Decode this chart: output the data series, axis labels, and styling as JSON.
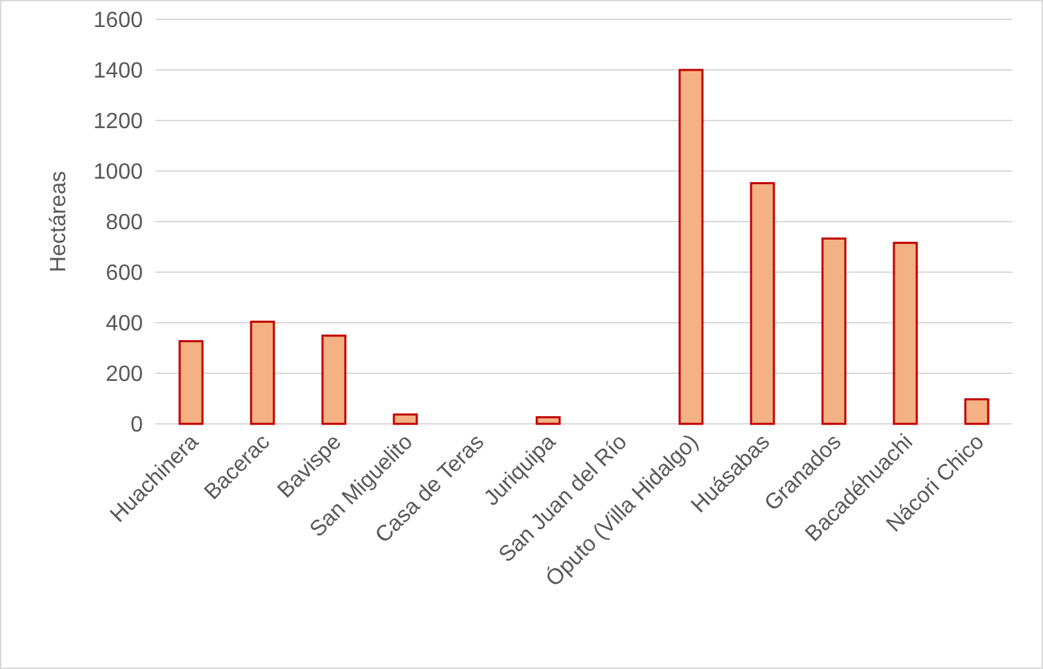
{
  "chart_data": {
    "type": "bar",
    "ylabel": "Hectáreas",
    "categories": [
      "Huachinera",
      "Bacerac",
      "Bavispe",
      "San Miguelito",
      "Casa de Teras",
      "Juriquipa",
      "San Juan del Río",
      "Óputo (Villa Hidalgo)",
      "Huásabas",
      "Granados",
      "Bacadéhuachi",
      "Nácori Chico"
    ],
    "series": [
      {
        "color": "#f4b183",
        "values": [
          327,
          404,
          349,
          37,
          0,
          26,
          0,
          1400,
          952,
          733,
          716,
          97
        ]
      }
    ],
    "ylim": [
      0,
      1600
    ],
    "yticks": [
      0,
      200,
      400,
      600,
      800,
      1000,
      1200,
      1400,
      1600
    ],
    "grid": "y"
  }
}
